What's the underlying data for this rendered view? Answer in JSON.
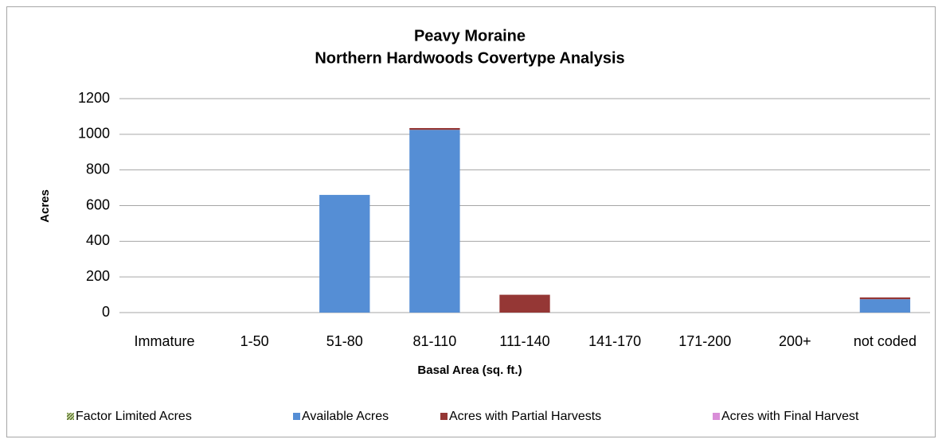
{
  "chart_data": {
    "type": "stacked_bar",
    "title": [
      "Peavy Moraine",
      "Northern Hardwoods Covertype Analysis"
    ],
    "xlabel": "Basal Area (sq. ft.)",
    "ylabel": "Acres",
    "categories": [
      "Immature",
      "1-50",
      "51-80",
      "81-110",
      "111-140",
      "141-170",
      "171-200",
      "200+",
      "not coded"
    ],
    "series": [
      {
        "name": "Factor Limited Acres",
        "color": "#77933c",
        "values": [
          0,
          0,
          0,
          0,
          0,
          0,
          0,
          0,
          0
        ]
      },
      {
        "name": "Available Acres",
        "color": "#558ed5",
        "values": [
          0,
          0,
          660,
          1025,
          0,
          0,
          0,
          0,
          75
        ]
      },
      {
        "name": "Acres with Partial Harvests",
        "color": "#953735",
        "values": [
          0,
          0,
          0,
          10,
          100,
          0,
          0,
          0,
          10
        ]
      },
      {
        "name": "Acres with Final Harvest",
        "color": "#d98ed8",
        "values": [
          0,
          0,
          0,
          0,
          0,
          0,
          0,
          0,
          0
        ]
      }
    ],
    "ylim": [
      0,
      1200
    ],
    "yticks": [
      0,
      200,
      400,
      600,
      800,
      1000,
      1200
    ],
    "grid": true,
    "legend": "bottom"
  }
}
